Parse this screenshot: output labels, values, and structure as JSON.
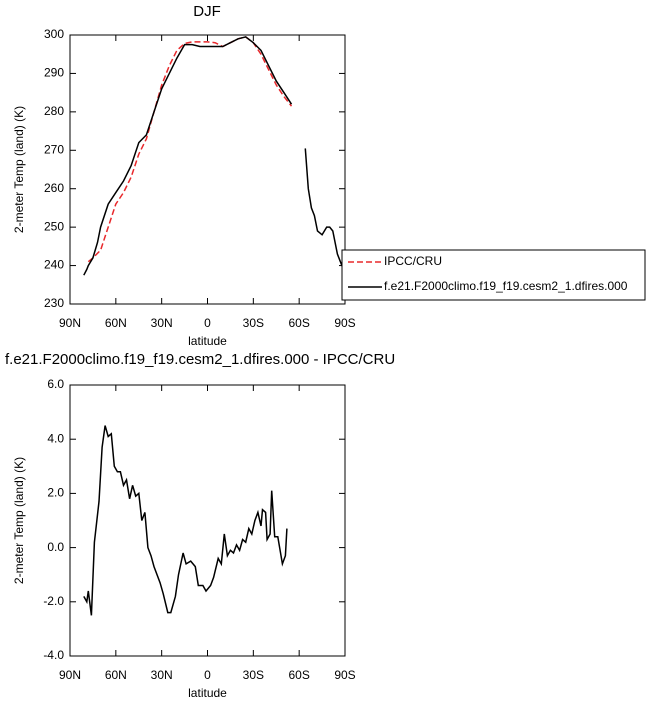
{
  "chart_data": [
    {
      "type": "line",
      "title": "DJF",
      "xlabel": "latitude",
      "ylabel": "2-meter Temp (land) (K)",
      "xlim": [
        90,
        -90
      ],
      "xticks": [
        {
          "value": 90,
          "label": "90N"
        },
        {
          "value": 60,
          "label": "60N"
        },
        {
          "value": 30,
          "label": "30N"
        },
        0,
        {
          "value": -30,
          "label": "30S"
        },
        {
          "value": -60,
          "label": "60S"
        },
        {
          "value": -90,
          "label": "90S"
        }
      ],
      "ylim": [
        230,
        300
      ],
      "yticks": [
        230,
        240,
        250,
        260,
        270,
        280,
        290,
        300
      ],
      "legend": "right",
      "series": [
        {
          "name": "IPCC/CRU",
          "color": "#e8282b",
          "dash": true,
          "x": [
            78,
            75,
            70,
            65,
            60,
            55,
            50,
            45,
            40,
            35,
            30,
            25,
            20,
            15,
            10,
            5,
            0,
            -5,
            -10,
            -15,
            -20,
            -25,
            -30,
            -35,
            -40,
            -45,
            -50,
            -55
          ],
          "values": [
            241,
            242,
            244,
            250,
            256,
            259,
            263,
            269,
            273,
            280,
            287,
            292,
            296,
            297.8,
            298.2,
            298.2,
            298.2,
            298,
            297,
            298,
            299,
            299.5,
            298,
            295,
            291,
            287,
            284,
            281.5
          ]
        },
        {
          "name": "f.e21.F2000climo.f19_f19.cesm2_1.dfires.000",
          "color": "#000000",
          "dash": false,
          "x": [
            81,
            79,
            78,
            75,
            72,
            70,
            65,
            60,
            55,
            50,
            45,
            40,
            35,
            30,
            25,
            20,
            15,
            10,
            5,
            0,
            -5,
            -10,
            -15,
            -20,
            -25,
            -30,
            -35,
            -40,
            -45,
            -50,
            -55,
            -60,
            -64,
            -66,
            -68,
            -70,
            -72,
            -75,
            -78,
            -80,
            -82,
            -85,
            -88,
            -90
          ],
          "values": [
            237.5,
            239,
            240,
            242,
            246,
            250,
            256,
            259,
            262,
            266,
            272,
            274,
            280,
            286,
            290,
            294,
            297.5,
            297.5,
            297,
            297,
            297,
            297,
            298,
            299,
            299.5,
            298,
            296,
            292,
            288,
            285,
            282,
            null,
            270.5,
            260,
            255,
            253,
            249,
            248,
            250,
            250,
            249,
            243,
            240,
            240
          ]
        }
      ]
    },
    {
      "type": "line",
      "title": "f.e21.F2000climo.f19_f19.cesm2_1.dfires.000 - IPCC/CRU",
      "xlabel": "latitude",
      "ylabel": "2-meter Temp (land) (K)",
      "xlim": [
        90,
        -90
      ],
      "xticks": [
        {
          "value": 90,
          "label": "90N"
        },
        {
          "value": 60,
          "label": "60N"
        },
        {
          "value": 30,
          "label": "30N"
        },
        0,
        {
          "value": -30,
          "label": "30S"
        },
        {
          "value": -60,
          "label": "60S"
        },
        {
          "value": -90,
          "label": "90S"
        }
      ],
      "ylim": [
        -4,
        6
      ],
      "yticks": [
        {
          "value": -4,
          "label": "-4.0"
        },
        {
          "value": -2,
          "label": "-2.0"
        },
        {
          "value": 0,
          "label": "0.0"
        },
        {
          "value": 2,
          "label": "2.0"
        },
        {
          "value": 4,
          "label": "4.0"
        },
        {
          "value": 6,
          "label": "6.0"
        }
      ],
      "series": [
        {
          "color": "#000000",
          "dash": false,
          "x": [
            81,
            79,
            78,
            76,
            74,
            71,
            69,
            67,
            65,
            63,
            61,
            59,
            57,
            55,
            53,
            51,
            49,
            47,
            45,
            43,
            41,
            39,
            37,
            35,
            31,
            29,
            26,
            24,
            21,
            19,
            16,
            14,
            11,
            8,
            6,
            3,
            1,
            -2,
            -4,
            -7,
            -9,
            -11,
            -13,
            -15,
            -17,
            -19,
            -21,
            -23,
            -25,
            -27,
            -29,
            -31,
            -33,
            -35,
            -36,
            -38,
            -39,
            -41,
            -42,
            -44,
            -46,
            -49,
            -51,
            -52
          ],
          "values": [
            -1.8,
            -2.0,
            -1.6,
            -2.5,
            0.2,
            1.7,
            3.7,
            4.5,
            4.1,
            4.2,
            3.0,
            2.8,
            2.8,
            2.3,
            2.5,
            1.8,
            2.3,
            1.9,
            2.0,
            1.0,
            1.3,
            0.0,
            -0.3,
            -0.7,
            -1.3,
            -1.7,
            -2.4,
            -2.4,
            -1.8,
            -1.0,
            -0.2,
            -0.6,
            -0.5,
            -0.7,
            -1.4,
            -1.4,
            -1.6,
            -1.4,
            -1.1,
            -0.4,
            -0.6,
            0.5,
            -0.3,
            -0.1,
            -0.2,
            0.1,
            -0.1,
            0.3,
            0.2,
            0.7,
            0.5,
            1.0,
            1.3,
            0.8,
            1.4,
            1.3,
            0.3,
            0.5,
            2.1,
            0.4,
            0.4,
            -0.6,
            -0.3,
            0.7
          ]
        }
      ]
    }
  ]
}
